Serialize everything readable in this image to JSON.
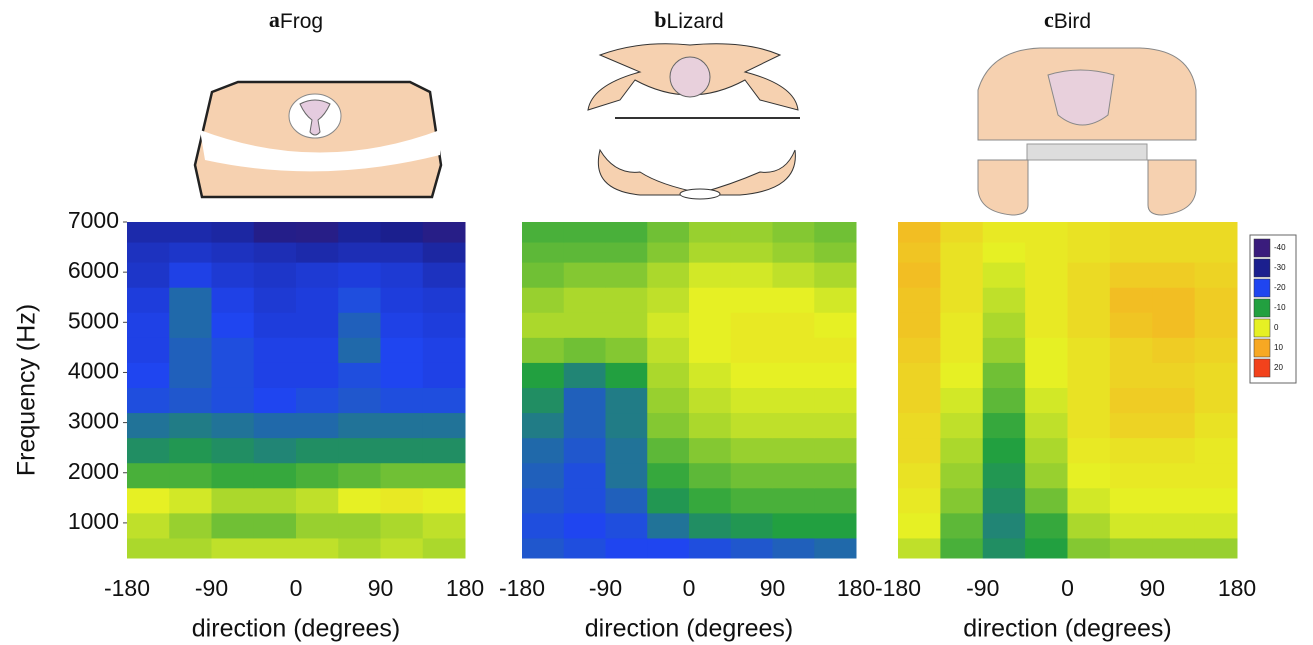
{
  "chart_data": [
    {
      "type": "heatmap",
      "panel": "a",
      "title": "Frog",
      "xlabel": "direction (degrees)",
      "ylabel": "Frequency (Hz)",
      "xlim": [
        -180,
        180
      ],
      "xticks": [
        -180,
        -90,
        0,
        90,
        180
      ],
      "ylim": [
        300,
        7000
      ],
      "yticks": [
        1000,
        2000,
        3000,
        4000,
        5000,
        6000,
        7000
      ],
      "xbins": [
        -180,
        -135,
        -90,
        -45,
        0,
        45,
        90,
        135,
        180
      ],
      "ybins": [
        300,
        700,
        1200,
        1700,
        2200,
        2700,
        3200,
        3700,
        4200,
        4700,
        5200,
        5700,
        6200,
        6600,
        7000
      ],
      "z": [
        [
          -3,
          -3,
          -2,
          -2,
          -2,
          -3,
          -2,
          -3
        ],
        [
          -2,
          -4,
          -6,
          -6,
          -4,
          -4,
          -3,
          -2
        ],
        [
          0,
          -1,
          -3,
          -3,
          -2,
          0,
          1,
          0
        ],
        [
          -8,
          -8,
          -9,
          -9,
          -8,
          -7,
          -6,
          -6
        ],
        [
          -12,
          -11,
          -12,
          -13,
          -12,
          -12,
          -12,
          -12
        ],
        [
          -15,
          -14,
          -15,
          -16,
          -16,
          -15,
          -15,
          -15
        ],
        [
          -19,
          -18,
          -19,
          -20,
          -19,
          -18,
          -19,
          -19
        ],
        [
          -20,
          -17,
          -19,
          -21,
          -21,
          -19,
          -20,
          -21
        ],
        [
          -21,
          -17,
          -19,
          -21,
          -21,
          -16,
          -20,
          -21
        ],
        [
          -21,
          -16,
          -20,
          -22,
          -22,
          -17,
          -21,
          -22
        ],
        [
          -22,
          -16,
          -21,
          -23,
          -22,
          -19,
          -22,
          -23
        ],
        [
          -24,
          -21,
          -23,
          -24,
          -23,
          -22,
          -23,
          -25
        ],
        [
          -25,
          -24,
          -25,
          -26,
          -27,
          -26,
          -26,
          -28
        ],
        [
          -27,
          -27,
          -28,
          -33,
          -34,
          -29,
          -30,
          -34
        ]
      ]
    },
    {
      "type": "heatmap",
      "panel": "b",
      "title": "Lizard",
      "xlabel": "direction (degrees)",
      "xlim": [
        -180,
        180
      ],
      "xticks": [
        -180,
        -90,
        0,
        90,
        180
      ],
      "ylim": [
        300,
        7000
      ],
      "xbins": [
        -180,
        -135,
        -90,
        -45,
        0,
        45,
        90,
        135,
        180
      ],
      "ybins": [
        300,
        700,
        1200,
        1700,
        2200,
        2700,
        3200,
        3700,
        4200,
        4700,
        5200,
        5700,
        6200,
        6600,
        7000
      ],
      "z": [
        [
          -18,
          -19,
          -20,
          -20,
          -19,
          -18,
          -17,
          -16
        ],
        [
          -19,
          -20,
          -19,
          -15,
          -12,
          -11,
          -10,
          -10
        ],
        [
          -18,
          -19,
          -17,
          -11,
          -9,
          -8,
          -8,
          -8
        ],
        [
          -17,
          -19,
          -15,
          -9,
          -7,
          -6,
          -6,
          -6
        ],
        [
          -16,
          -18,
          -15,
          -7,
          -5,
          -4,
          -4,
          -4
        ],
        [
          -14,
          -17,
          -14,
          -5,
          -3,
          -2,
          -2,
          -2
        ],
        [
          -12,
          -17,
          -14,
          -4,
          -2,
          -1,
          -1,
          -1
        ],
        [
          -10,
          -13,
          -10,
          -3,
          -1,
          0,
          0,
          0
        ],
        [
          -5,
          -6,
          -5,
          -2,
          0,
          1,
          1,
          1
        ],
        [
          -3,
          -3,
          -3,
          -1,
          0,
          1,
          1,
          0
        ],
        [
          -4,
          -3,
          -3,
          -2,
          0,
          0,
          0,
          -1
        ],
        [
          -6,
          -5,
          -5,
          -3,
          -1,
          -1,
          -2,
          -3
        ],
        [
          -7,
          -7,
          -7,
          -5,
          -3,
          -3,
          -4,
          -5
        ],
        [
          -8,
          -8,
          -8,
          -6,
          -4,
          -4,
          -5,
          -6
        ]
      ]
    },
    {
      "type": "heatmap",
      "panel": "c",
      "title": "Bird",
      "xlabel": "direction (degrees)",
      "xlim": [
        -180,
        180
      ],
      "xticks": [
        -180,
        -90,
        0,
        90,
        180
      ],
      "ylim": [
        300,
        7000
      ],
      "xbins": [
        -180,
        -135,
        -90,
        -45,
        0,
        45,
        90,
        135,
        180
      ],
      "ybins": [
        300,
        700,
        1200,
        1700,
        2200,
        2700,
        3200,
        3700,
        4200,
        4700,
        5200,
        5700,
        6200,
        6600,
        7000
      ],
      "z": [
        [
          -2,
          -8,
          -12,
          -10,
          -5,
          -4,
          -4,
          -4
        ],
        [
          0,
          -7,
          -13,
          -9,
          -3,
          -1,
          -1,
          -1
        ],
        [
          1,
          -5,
          -12,
          -6,
          -1,
          0,
          0,
          0
        ],
        [
          2,
          -4,
          -11,
          -4,
          0,
          1,
          1,
          1
        ],
        [
          3,
          -3,
          -10,
          -3,
          1,
          2,
          2,
          1
        ],
        [
          3,
          -2,
          -9,
          -2,
          2,
          4,
          4,
          2
        ],
        [
          4,
          -1,
          -7,
          -1,
          2,
          5,
          5,
          3
        ],
        [
          4,
          0,
          -6,
          0,
          2,
          4,
          4,
          3
        ],
        [
          5,
          1,
          -4,
          0,
          2,
          4,
          5,
          4
        ],
        [
          6,
          1,
          -3,
          1,
          3,
          6,
          7,
          5
        ],
        [
          6,
          2,
          -2,
          1,
          3,
          7,
          7,
          5
        ],
        [
          7,
          2,
          -1,
          1,
          3,
          5,
          5,
          4
        ],
        [
          6,
          2,
          0,
          1,
          2,
          3,
          3,
          3
        ],
        [
          7,
          3,
          1,
          1,
          2,
          3,
          3,
          3
        ]
      ],
      "colorbar": {
        "levels": [
          -40,
          -30,
          -20,
          -10,
          0,
          10,
          20
        ],
        "colors": [
          "#3a1c7c",
          "#1b1f8e",
          "#1f45f0",
          "#22a040",
          "#e6f024",
          "#f7a823",
          "#f2421c"
        ]
      }
    }
  ]
}
